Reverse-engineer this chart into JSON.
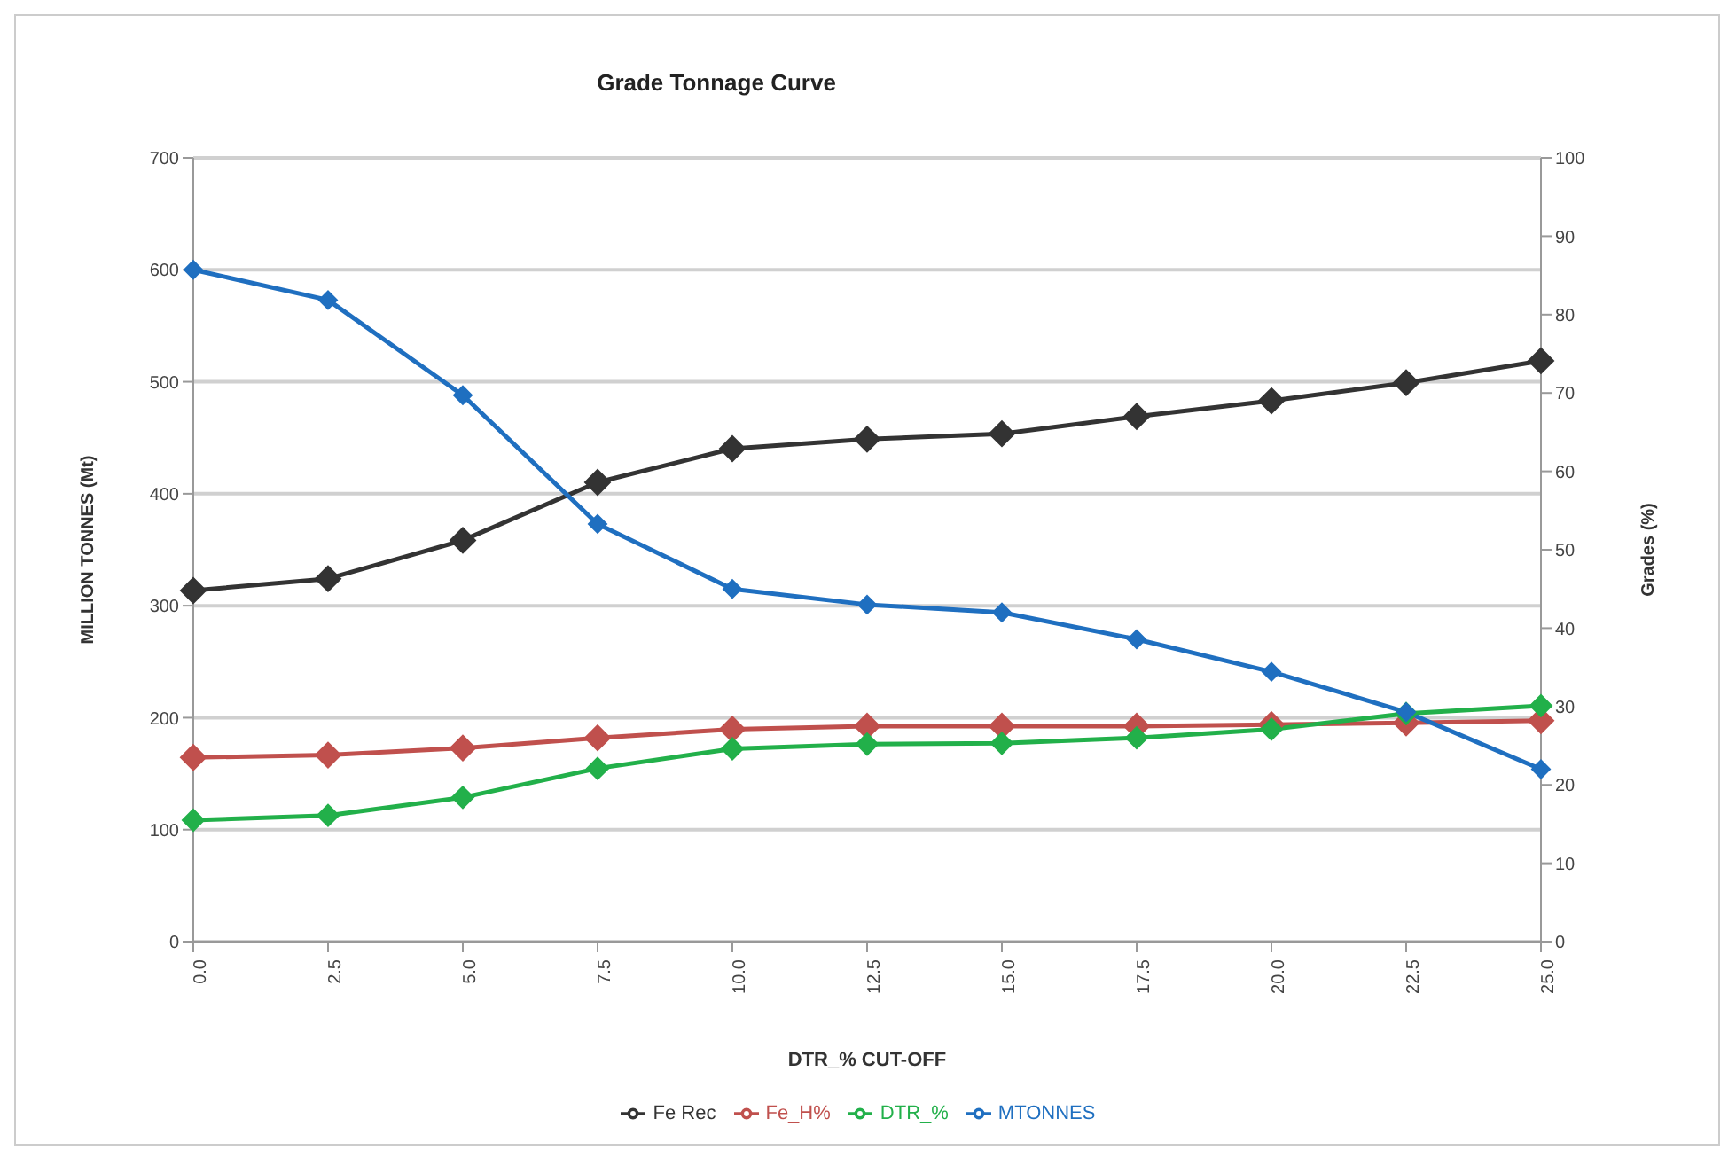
{
  "chart_data": {
    "type": "line",
    "title": "Grade Tonnage Curve",
    "xlabel": "DTR_% CUT-OFF",
    "ylabel": "MILLION TONNES (Mt)",
    "y2label": "Grades (%)",
    "categories": [
      "0.0",
      "2.5",
      "5.0",
      "7.5",
      "10.0",
      "12.5",
      "15.0",
      "17.5",
      "20.0",
      "22.5",
      "25.0"
    ],
    "series": [
      {
        "name": "MTONNES",
        "color": "#1f6fc0",
        "values": [
          600,
          573,
          488,
          373,
          315,
          301,
          294,
          270,
          241,
          205,
          154
        ]
      },
      {
        "name": "DTR_%",
        "color": "#22b04a",
        "axis": "y2",
        "values": [
          15.5,
          16.1,
          18.4,
          22.1,
          24.6,
          25.2,
          25.3,
          26.0,
          27.1,
          29.1,
          30.1
        ]
      },
      {
        "name": "Fe_H%",
        "color": "#c0504d",
        "axis": "y2",
        "values": [
          23.5,
          23.8,
          24.7,
          26.0,
          27.1,
          27.5,
          27.5,
          27.5,
          27.7,
          27.9,
          28.2
        ]
      },
      {
        "name": "Fe Rec",
        "color": "#333333",
        "axis": "y2",
        "values": [
          44.8,
          46.3,
          51.2,
          58.6,
          62.9,
          64.1,
          64.8,
          67.0,
          69.0,
          71.3,
          74.1
        ]
      }
    ],
    "ylim": [
      0,
      700
    ],
    "yticks": [
      0,
      100,
      200,
      300,
      400,
      500,
      600,
      700
    ],
    "y2lim": [
      0,
      100
    ],
    "y2ticks": [
      0,
      10,
      20,
      30,
      40,
      50,
      60,
      70,
      80,
      90,
      100
    ],
    "grid": "y",
    "legend": "bottom",
    "marker": "diamond",
    "line_style": "solid"
  }
}
